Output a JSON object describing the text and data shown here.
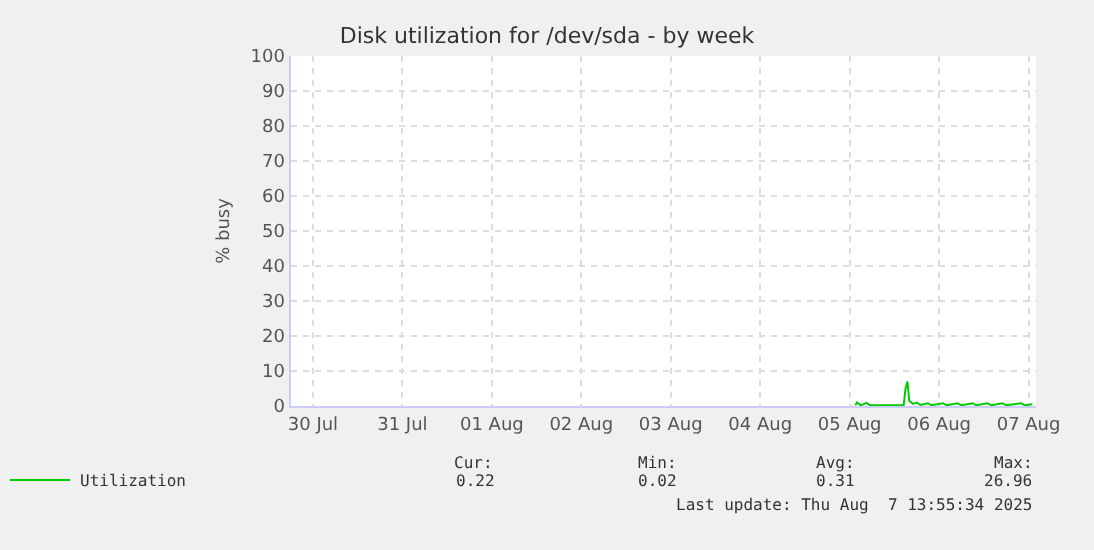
{
  "chart_data": {
    "type": "line",
    "title": "Disk utilization for /dev/sda - by week",
    "ylabel": "% busy",
    "xlim": [
      "2025-07-30T06:00",
      "2025-08-07T14:00"
    ],
    "xticks": [
      {
        "value": "2025-07-30T12:00",
        "label": "30 Jul"
      },
      {
        "value": "2025-07-31T12:00",
        "label": "31 Jul"
      },
      {
        "value": "2025-08-01T12:00",
        "label": "01 Aug"
      },
      {
        "value": "2025-08-02T12:00",
        "label": "02 Aug"
      },
      {
        "value": "2025-08-03T12:00",
        "label": "03 Aug"
      },
      {
        "value": "2025-08-04T12:00",
        "label": "04 Aug"
      },
      {
        "value": "2025-08-05T12:00",
        "label": "05 Aug"
      },
      {
        "value": "2025-08-06T12:00",
        "label": "06 Aug"
      },
      {
        "value": "2025-08-07T12:00",
        "label": "07 Aug"
      }
    ],
    "ylim": [
      0,
      100
    ],
    "yticks": [
      0,
      10,
      20,
      30,
      40,
      50,
      60,
      70,
      80,
      90,
      100
    ],
    "grid": true,
    "legend": "bottom left",
    "marker": "none",
    "line_style": "solid",
    "series": [
      {
        "name": "Utilization",
        "color": "#00cc00",
        "x": [
          "2025-08-05T13:30",
          "2025-08-05T14:00",
          "2025-08-05T15:00",
          "2025-08-05T16:30",
          "2025-08-05T17:30",
          "2025-08-06T02:30",
          "2025-08-06T03:00",
          "2025-08-06T03:30",
          "2025-08-06T04:00",
          "2025-08-06T05:00",
          "2025-08-06T06:00",
          "2025-08-06T07:00",
          "2025-08-06T09:00",
          "2025-08-06T10:00",
          "2025-08-06T13:00",
          "2025-08-06T14:00",
          "2025-08-06T17:00",
          "2025-08-06T18:00",
          "2025-08-06T21:00",
          "2025-08-06T22:00",
          "2025-08-07T01:00",
          "2025-08-07T02:00",
          "2025-08-07T05:00",
          "2025-08-07T06:00",
          "2025-08-07T10:00",
          "2025-08-07T11:00",
          "2025-08-07T13:00"
        ],
        "values": [
          0.2,
          1.0,
          0.2,
          0.9,
          0.2,
          0.3,
          5.0,
          7.0,
          1.5,
          0.6,
          1.0,
          0.3,
          0.8,
          0.2,
          0.8,
          0.2,
          0.8,
          0.2,
          0.8,
          0.2,
          0.8,
          0.2,
          0.8,
          0.2,
          0.8,
          0.2,
          0.5
        ]
      }
    ],
    "annotations": [
      "Cur:",
      "0.22",
      "Min:",
      "0.02",
      "Avg:",
      "0.31",
      "Max:",
      "26.96",
      "Last update: Thu Aug  7 13:55:34 2025"
    ]
  }
}
